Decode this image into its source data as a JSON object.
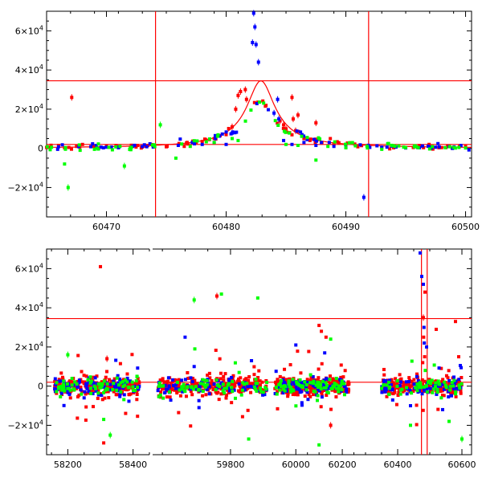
{
  "chart_data": [
    {
      "type": "scatter",
      "title": "",
      "xlabel": "",
      "ylabel": "",
      "xlim": [
        60465,
        60500.5
      ],
      "ylim": [
        -35000,
        70000
      ],
      "x_ticks": [
        60470,
        60480,
        60490,
        60500
      ],
      "x_tick_labels": [
        "60470",
        "60480",
        "60490",
        "60500"
      ],
      "y_ticks": [
        -20000,
        0,
        20000,
        40000,
        60000
      ],
      "y_tick_labels": [
        {
          "mant": "−2×10",
          "exp": "4"
        },
        {
          "mant": "0",
          "exp": ""
        },
        {
          "mant": "2×10",
          "exp": "4"
        },
        {
          "mant": "4×10",
          "exp": "4"
        },
        {
          "mant": "6×10",
          "exp": "4"
        }
      ],
      "hlines": [
        34500,
        2000
      ],
      "vlines": [
        60474.1,
        60491.9
      ],
      "model": {
        "peak_x": 60482.9,
        "peak_y": 34500,
        "baseline": 0
      },
      "series": [
        {
          "color": "#ff0000",
          "points": [
            [
              60465.2,
              500
            ],
            [
              60466,
              1500
            ],
            [
              60466.5,
              300
            ],
            [
              60467.1,
              26000
            ],
            [
              60467.5,
              1000
            ],
            [
              60468,
              2000
            ],
            [
              60469,
              800
            ],
            [
              60470,
              1200
            ],
            [
              60470.8,
              1500
            ],
            [
              60471,
              800
            ],
            [
              60472,
              300
            ],
            [
              60472.6,
              1500
            ],
            [
              60473,
              700
            ],
            [
              60475,
              800
            ],
            [
              60476.5,
              1000
            ],
            [
              60477.5,
              3000
            ],
            [
              60478,
              3500
            ],
            [
              60478.6,
              4500
            ],
            [
              60479,
              5000
            ],
            [
              60479.5,
              6500
            ],
            [
              60480,
              7000
            ],
            [
              60480.5,
              11000
            ],
            [
              60480.8,
              20000
            ],
            [
              60481,
              27000
            ],
            [
              60481.2,
              29000
            ],
            [
              60481.6,
              30000
            ],
            [
              60481.7,
              25000
            ],
            [
              60484.5,
              14000
            ],
            [
              60484.8,
              12000
            ],
            [
              60485,
              10000
            ],
            [
              60485.3,
              8000
            ],
            [
              60485.5,
              26000
            ],
            [
              60485.6,
              15000
            ],
            [
              60485.8,
              9000
            ],
            [
              60486,
              17000
            ],
            [
              60486.5,
              5000
            ],
            [
              60487,
              4000
            ],
            [
              60487.5,
              13000
            ],
            [
              60488,
              3000
            ],
            [
              60488.7,
              5000
            ],
            [
              60489,
              2000
            ],
            [
              60490,
              1000
            ],
            [
              60491,
              800
            ],
            [
              60493,
              500
            ],
            [
              60494,
              600
            ],
            [
              60496,
              500
            ],
            [
              60497,
              1000
            ],
            [
              60498,
              400
            ],
            [
              60498.5,
              1200
            ],
            [
              60499.5,
              1000
            ],
            [
              60500,
              900
            ]
          ]
        },
        {
          "color": "#0000ff",
          "points": [
            [
              60466,
              800
            ],
            [
              60470,
              600
            ],
            [
              60471,
              300
            ],
            [
              60473,
              900
            ],
            [
              60476,
              1500
            ],
            [
              60478,
              2000
            ],
            [
              60479,
              3000
            ],
            [
              60480,
              2000
            ],
            [
              60482.3,
              69000
            ],
            [
              60482.4,
              62000
            ],
            [
              60482.5,
              53000
            ],
            [
              60482.7,
              44000
            ],
            [
              60482.2,
              54000
            ],
            [
              60484,
              18000
            ],
            [
              60484.4,
              15000
            ],
            [
              60484.3,
              25000
            ],
            [
              60484.8,
              4000
            ],
            [
              60485.5,
              2000
            ],
            [
              60486.5,
              3000
            ],
            [
              60487.5,
              1500
            ],
            [
              60489,
              1000
            ],
            [
              60490,
              500
            ],
            [
              60491.5,
              -25000
            ],
            [
              60492,
              500
            ],
            [
              60493,
              600
            ],
            [
              60495,
              200
            ],
            [
              60497,
              700
            ],
            [
              60499,
              300
            ]
          ]
        },
        {
          "color": "#00ff00",
          "points": [
            [
              60465.3,
              -700
            ],
            [
              60466.5,
              -8000
            ],
            [
              60466.8,
              -20000
            ],
            [
              60467.8,
              -1000
            ],
            [
              60469,
              -500
            ],
            [
              60470.2,
              500
            ],
            [
              60471.5,
              -9000
            ],
            [
              60472,
              200
            ],
            [
              60474.5,
              12000
            ],
            [
              60475.8,
              -5000
            ],
            [
              60477,
              1000
            ],
            [
              60479,
              3000
            ],
            [
              60480.5,
              5000
            ],
            [
              60481,
              4000
            ],
            [
              60485,
              2000
            ],
            [
              60486,
              1500
            ],
            [
              60487.5,
              -6000
            ],
            [
              60488.5,
              1000
            ],
            [
              60490,
              300
            ],
            [
              60491.8,
              200
            ],
            [
              60493,
              -500
            ],
            [
              60495,
              400
            ],
            [
              60497,
              -300
            ],
            [
              60499,
              500
            ],
            [
              60500,
              200
            ]
          ]
        }
      ]
    },
    {
      "type": "scatter",
      "title": "",
      "xlabel": "",
      "ylabel": "",
      "x_ticks_kind": "broken-axis",
      "ylim": [
        -35000,
        70000
      ],
      "segments": [
        {
          "xlim": [
            58135,
            58455
          ],
          "ticks": [
            58200,
            58400
          ],
          "tick_labels": [
            "58200",
            "58400"
          ]
        },
        {
          "xlim": [
            59625,
            59885
          ],
          "ticks": [
            59800
          ],
          "tick_labels": [
            "59800"
          ]
        },
        {
          "xlim": [
            59885,
            60300
          ],
          "ticks": [
            60000,
            60200
          ],
          "tick_labels": [
            "60000",
            "60200"
          ]
        },
        {
          "xlim": [
            60300,
            60630
          ],
          "ticks": [
            60400,
            60600
          ],
          "tick_labels": [
            "60400",
            "60600"
          ]
        }
      ],
      "y_ticks": [
        -20000,
        0,
        20000,
        40000,
        60000
      ],
      "y_tick_labels": [
        {
          "mant": "−2×10",
          "exp": "4"
        },
        {
          "mant": "0",
          "exp": ""
        },
        {
          "mant": "2×10",
          "exp": "4"
        },
        {
          "mant": "4×10",
          "exp": "4"
        },
        {
          "mant": "6×10",
          "exp": "4"
        }
      ],
      "hlines": [
        34500,
        2000
      ],
      "vlines": [
        60474.1,
        60491.9
      ],
      "clusters": [
        {
          "x_range": [
            58160,
            58420
          ],
          "color_counts": {
            "#ff0000": 260,
            "#0000ff": 90,
            "#00ff00": 70
          }
        },
        {
          "x_range": [
            59640,
            59880
          ],
          "color_counts": {
            "#ff0000": 260,
            "#0000ff": 80,
            "#00ff00": 70
          }
        },
        {
          "x_range": [
            59910,
            60230
          ],
          "color_counts": {
            "#ff0000": 300,
            "#0000ff": 90,
            "#00ff00": 80
          }
        },
        {
          "x_range": [
            60350,
            60600
          ],
          "color_counts": {
            "#ff0000": 220,
            "#0000ff": 80,
            "#00ff00": 60
          }
        }
      ],
      "outliers": [
        {
          "color": "#ff0000",
          "points": [
            [
              58300,
              61000
            ],
            [
              58310,
              -29000
            ],
            [
              58320,
              14000
            ],
            [
              59770,
              46000
            ],
            [
              60100,
              31000
            ],
            [
              60110,
              28000
            ],
            [
              60130,
              25000
            ],
            [
              60150,
              -20000
            ],
            [
              60520,
              29000
            ],
            [
              60580,
              33000
            ],
            [
              60590,
              15000
            ],
            [
              60480,
              35000
            ],
            [
              60485,
              48000
            ]
          ]
        },
        {
          "color": "#0000ff",
          "points": [
            [
              58250,
              -6000
            ],
            [
              59700,
              25000
            ],
            [
              59720,
              10000
            ],
            [
              60000,
              21000
            ],
            [
              60470,
              68000
            ],
            [
              60475,
              56000
            ],
            [
              60480,
              52000
            ],
            [
              60490,
              20000
            ],
            [
              60440,
              -10000
            ],
            [
              60540,
              -12000
            ]
          ]
        },
        {
          "color": "#00ff00",
          "points": [
            [
              58200,
              16000
            ],
            [
              58310,
              -17000
            ],
            [
              58330,
              -25000
            ],
            [
              59720,
              44000
            ],
            [
              59780,
              47000
            ],
            [
              59860,
              45000
            ],
            [
              59840,
              -27000
            ],
            [
              60100,
              -30000
            ],
            [
              60150,
              24000
            ],
            [
              60440,
              -20000
            ],
            [
              60560,
              -18000
            ],
            [
              60600,
              -27000
            ]
          ]
        }
      ]
    }
  ]
}
